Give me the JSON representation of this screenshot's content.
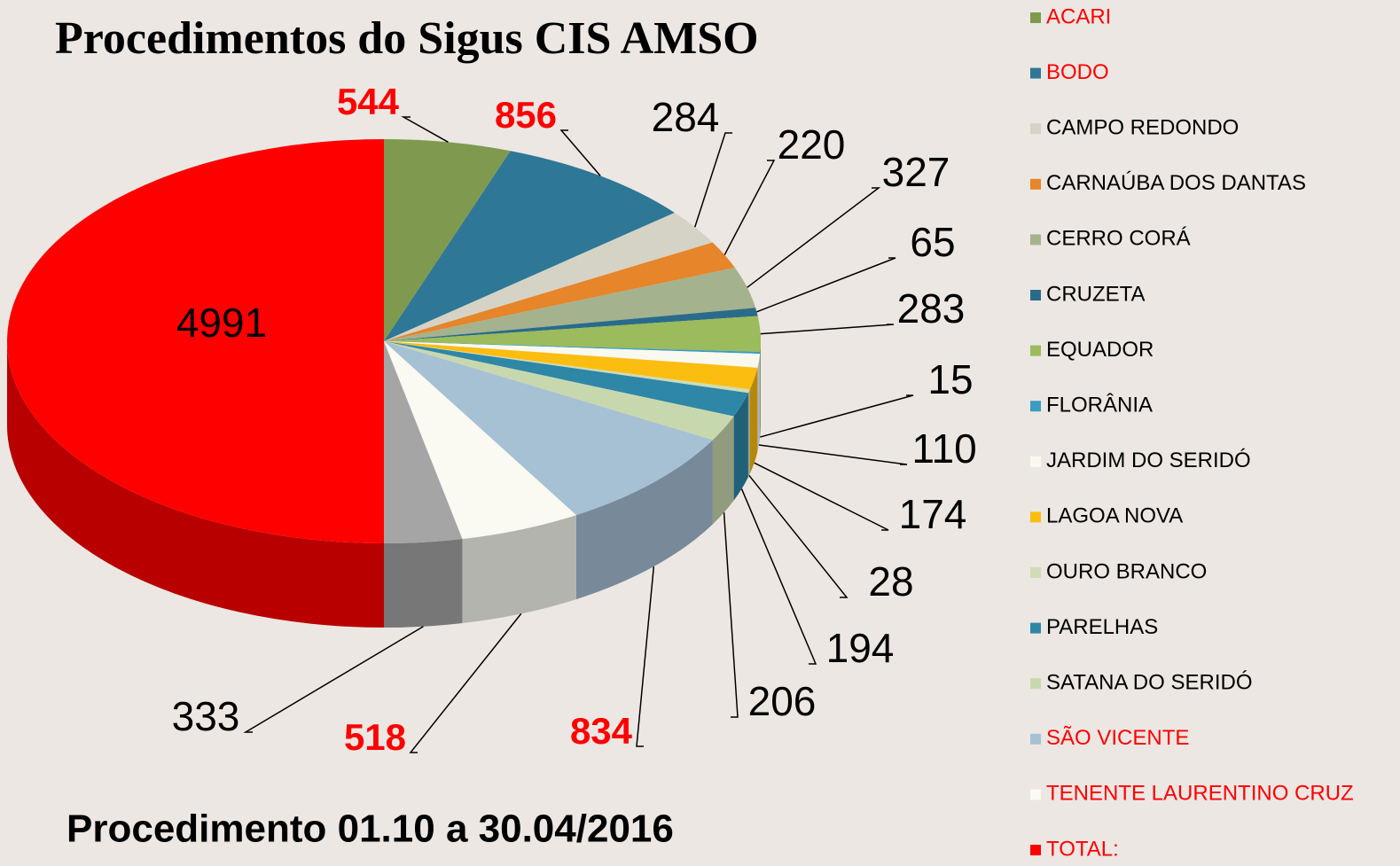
{
  "chart_data": {
    "type": "pie3d",
    "title": "Procedimentos do Sigus CIS AMSO",
    "subtitle": "Procedimento 01.10 a 30.04/2016",
    "categories": [
      "ACARI",
      "BODO",
      "CAMPO REDONDO",
      "CARNAÚBA DOS DANTAS",
      "CERRO CORÁ",
      "CRUZETA",
      "EQUADOR",
      "FLORÂNIA",
      "JARDIM DO SERIDÓ",
      "LAGOA NOVA",
      "OURO BRANCO",
      "PARELHAS",
      "SATANA DO SERIDÓ",
      "SÃO VICENTE",
      "TENENTE LAURENTINO CRUZ",
      null,
      "TOTAL:"
    ],
    "values": [
      544,
      856,
      284,
      220,
      327,
      65,
      283,
      15,
      110,
      174,
      28,
      194,
      206,
      834,
      518,
      333,
      4991
    ],
    "colors": [
      "#7f9a4e",
      "#2e7796",
      "#d5d3c5",
      "#e6852a",
      "#a5b28e",
      "#2a6b8a",
      "#9bbb5c",
      "#3b9cc0",
      "#f9f9f0",
      "#fbbd10",
      "#cfdcb5",
      "#2e87a7",
      "#c8d8ae",
      "#a6c0d4",
      "#fafaf2",
      "#a5a5a5",
      "#ff0000"
    ],
    "legend_text_colors": [
      "#ff0000",
      "#ff0000",
      "#000000",
      "#000000",
      "#000000",
      "#000000",
      "#000000",
      "#000000",
      "#000000",
      "#000000",
      "#000000",
      "#000000",
      "#000000",
      "#ff0000",
      "#ff0000",
      "#000000",
      "#ff0000"
    ],
    "value_label_colors": [
      "#ff0000",
      "#ff0000",
      "#000000",
      "#000000",
      "#000000",
      "#000000",
      "#000000",
      "#000000",
      "#000000",
      "#000000",
      "#000000",
      "#000000",
      "#000000",
      "#ff0000",
      "#ff0000",
      "#000000",
      "#000000"
    ]
  }
}
